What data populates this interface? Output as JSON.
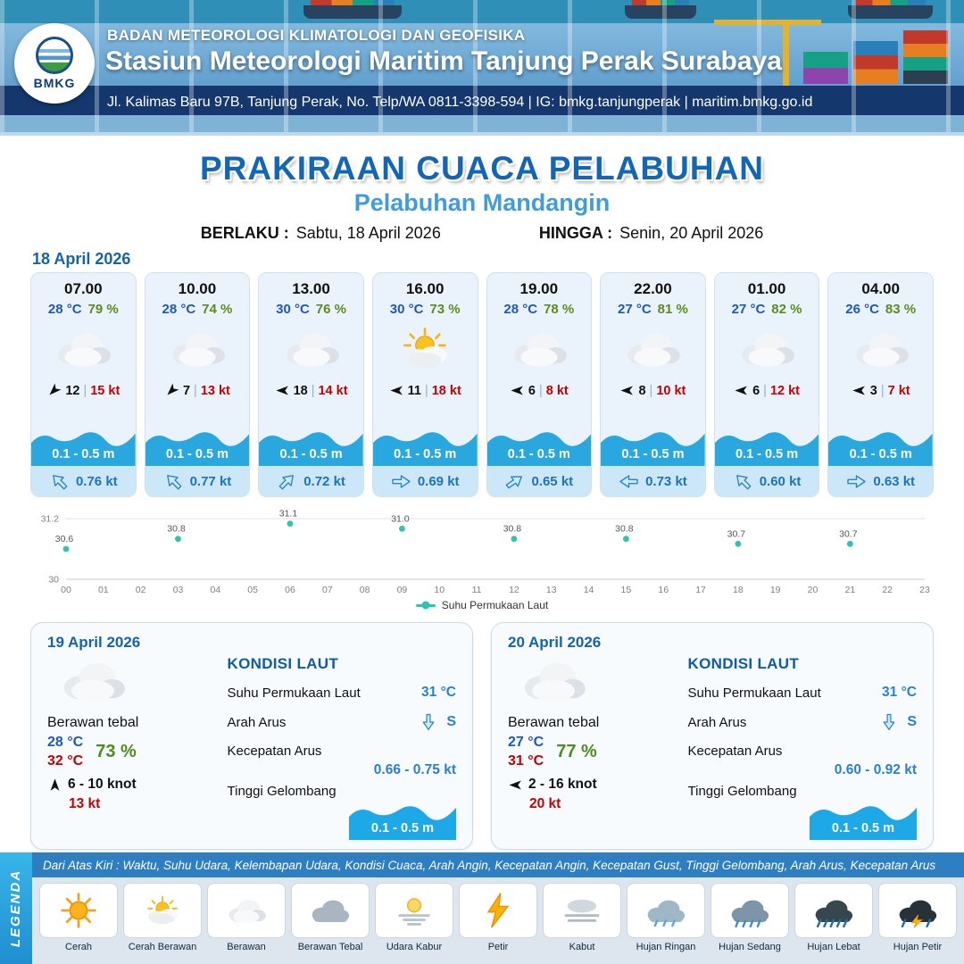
{
  "header": {
    "org": "BADAN METEOROLOGI KLIMATOLOGI DAN GEOFISIKA",
    "station": "Stasiun Meteorologi Maritim Tanjung Perak Surabaya",
    "address": "Jl. Kalimas Baru 97B, Tanjung Perak, No. Telp/WA 0811-3398-594 | IG: bmkg.tanjungperak | maritim.bmkg.go.id",
    "logo_text": "BMKG"
  },
  "title": {
    "main": "PRAKIRAAN CUACA PELABUHAN",
    "port": "Pelabuhan Mandangin",
    "valid_label": "BERLAKU :",
    "valid_date": "Sabtu, 18 April 2026",
    "until_label": "HINGGA :",
    "until_date": "Senin, 20 April 2026"
  },
  "forecast_date": "18 April 2026",
  "cards": [
    {
      "time": "07.00",
      "temp": "28 °C",
      "rh": "79 %",
      "icon": "cloud",
      "wind": "12",
      "gust": "15 kt",
      "wind_dir_deg": 135,
      "wave": "0.1 - 0.5 m",
      "current": "0.76 kt",
      "current_dir_deg": -135
    },
    {
      "time": "10.00",
      "temp": "28 °C",
      "rh": "74 %",
      "icon": "cloud",
      "wind": "7",
      "gust": "13 kt",
      "wind_dir_deg": 135,
      "wave": "0.1 - 0.5 m",
      "current": "0.77 kt",
      "current_dir_deg": -135
    },
    {
      "time": "13.00",
      "temp": "30 °C",
      "rh": "76 %",
      "icon": "cloud",
      "wind": "18",
      "gust": "14 kt",
      "wind_dir_deg": 180,
      "wave": "0.1 - 0.5 m",
      "current": "0.72 kt",
      "current_dir_deg": -45
    },
    {
      "time": "16.00",
      "temp": "30 °C",
      "rh": "73 %",
      "icon": "suncloud",
      "wind": "11",
      "gust": "18 kt",
      "wind_dir_deg": 180,
      "wave": "0.1 - 0.5 m",
      "current": "0.69 kt",
      "current_dir_deg": 0
    },
    {
      "time": "19.00",
      "temp": "28 °C",
      "rh": "78 %",
      "icon": "cloud",
      "wind": "6",
      "gust": "8 kt",
      "wind_dir_deg": 180,
      "wave": "0.1 - 0.5 m",
      "current": "0.65 kt",
      "current_dir_deg": -35
    },
    {
      "time": "22.00",
      "temp": "27 °C",
      "rh": "81 %",
      "icon": "cloud",
      "wind": "8",
      "gust": "10 kt",
      "wind_dir_deg": 180,
      "wave": "0.1 - 0.5 m",
      "current": "0.73 kt",
      "current_dir_deg": 180
    },
    {
      "time": "01.00",
      "temp": "27 °C",
      "rh": "82 %",
      "icon": "cloud",
      "wind": "6",
      "gust": "12 kt",
      "wind_dir_deg": 180,
      "wave": "0.1 - 0.5 m",
      "current": "0.60 kt",
      "current_dir_deg": -135
    },
    {
      "time": "04.00",
      "temp": "26 °C",
      "rh": "83 %",
      "icon": "cloud",
      "wind": "3",
      "gust": "7 kt",
      "wind_dir_deg": 180,
      "wave": "0.1 - 0.5 m",
      "current": "0.63 kt",
      "current_dir_deg": 0
    }
  ],
  "chart_data": {
    "type": "scatter",
    "series_name": "Suhu Permukaan Laut",
    "x": [
      0,
      3,
      6,
      9,
      12,
      15,
      18,
      21
    ],
    "values": [
      30.6,
      30.8,
      31.1,
      31.0,
      30.8,
      30.8,
      30.7,
      30.7
    ],
    "xlim": [
      0,
      23
    ],
    "ylim": [
      30,
      31.2
    ],
    "x_tick_labels": [
      "00",
      "01",
      "02",
      "03",
      "04",
      "05",
      "06",
      "07",
      "08",
      "09",
      "10",
      "11",
      "12",
      "13",
      "14",
      "15",
      "16",
      "17",
      "18",
      "19",
      "20",
      "21",
      "22",
      "23"
    ],
    "y_tick_labels": [
      "31.2",
      "30"
    ],
    "color": "#2cc5b2",
    "legend_position": "bottom",
    "grid": "horizontal"
  },
  "labels": {
    "sea_title": "KONDISI LAUT",
    "sst": "Suhu Permukaan Laut",
    "current_dir": "Arah Arus",
    "current_speed": "Kecepatan Arus",
    "wave": "Tinggi Gelombang"
  },
  "daily": [
    {
      "date": "19 April 2026",
      "condition": "Berawan tebal",
      "temp_min": "28 °C",
      "temp_max": "32 °C",
      "rh": "73 %",
      "wind_range": "6  - 10 knot",
      "gust": "13 kt",
      "wind_dir_deg": -90,
      "sst": "31 °C",
      "current_dir": "S",
      "current_dir_deg": 90,
      "current_speed": "0.66  - 0.75 kt",
      "wave": "0.1 - 0.5 m"
    },
    {
      "date": "20 April 2026",
      "condition": "Berawan tebal",
      "temp_min": "27 °C",
      "temp_max": "31 °C",
      "rh": "77 %",
      "wind_range": "2  - 16 knot",
      "gust": "20 kt",
      "wind_dir_deg": 180,
      "sst": "31 °C",
      "current_dir": "S",
      "current_dir_deg": 90,
      "current_speed": "0.60  - 0.92 kt",
      "wave": "0.1 - 0.5 m"
    }
  ],
  "legend": {
    "title": "LEGENDA",
    "description": "Dari Atas Kiri : Waktu, Suhu Udara, Kelembapan Udara, Kondisi Cuaca, Arah Angin, Kecepatan Angin, Kecepatan Gust, Tinggi Gelombang, Arah Arus, Kecepatan Arus",
    "items": [
      {
        "label": "Cerah",
        "icon": "sun"
      },
      {
        "label": "Cerah Berawan",
        "icon": "sun-cloud"
      },
      {
        "label": "Berawan",
        "icon": "cloud"
      },
      {
        "label": "Berawan Tebal",
        "icon": "cloud-thick"
      },
      {
        "label": "Udara Kabur",
        "icon": "haze"
      },
      {
        "label": "Petir",
        "icon": "lightning"
      },
      {
        "label": "Kabut",
        "icon": "fog"
      },
      {
        "label": "Hujan Ringan",
        "icon": "rain-light"
      },
      {
        "label": "Hujan Sedang",
        "icon": "rain-medium"
      },
      {
        "label": "Hujan Lebat",
        "icon": "rain-heavy"
      },
      {
        "label": "Hujan Petir",
        "icon": "thunderstorm"
      }
    ]
  }
}
